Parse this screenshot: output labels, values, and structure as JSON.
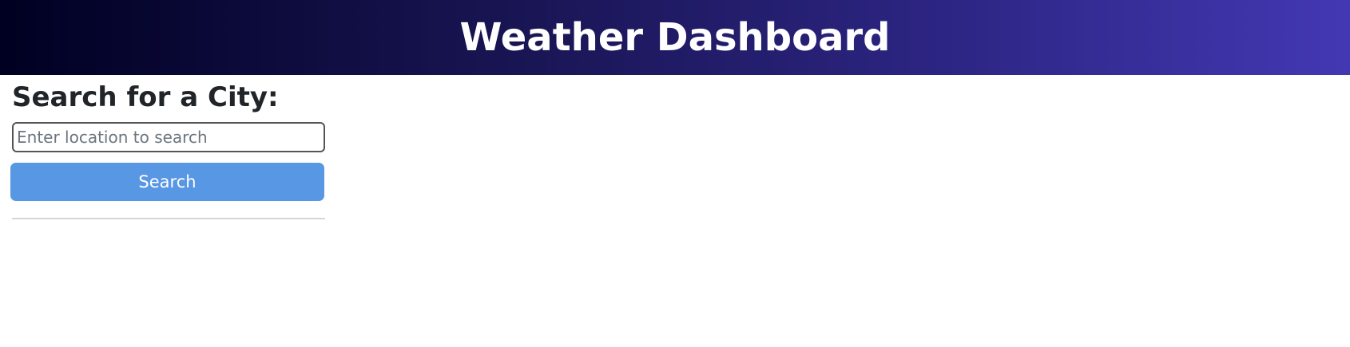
{
  "header": {
    "title": "Weather Dashboard"
  },
  "sidebar": {
    "heading": "Search for a City:",
    "search": {
      "value": "",
      "placeholder": "Enter location to search"
    },
    "search_button_label": "Search"
  },
  "colors": {
    "header_gradient_start": "#000022",
    "header_gradient_end": "#4338b3",
    "button_background": "#5897e3",
    "button_text": "#ffffff",
    "heading_text": "#212529"
  }
}
